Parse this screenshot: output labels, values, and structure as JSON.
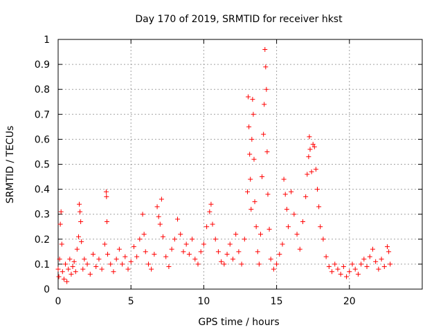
{
  "chart_data": {
    "type": "scatter",
    "title": "Day 170 of 2019, SRMTID for receiver hkst",
    "xlabel": "GPS time / hours",
    "ylabel": "SRMTID / TECUs",
    "xlim": [
      0,
      25
    ],
    "ylim": [
      0,
      1
    ],
    "x_ticks": [
      0,
      5,
      10,
      15,
      20
    ],
    "x_tick_labels": [
      "0",
      "5",
      "10",
      "15",
      "20"
    ],
    "y_ticks": [
      0,
      0.1,
      0.2,
      0.3,
      0.4,
      0.5,
      0.6,
      0.7,
      0.8,
      0.9,
      1
    ],
    "y_tick_labels": [
      "0",
      "0.1",
      "0.2",
      "0.3",
      "0.4",
      "0.5",
      "0.6",
      "0.7",
      "0.8",
      "0.9",
      "1"
    ],
    "grid": true,
    "marker": "plus",
    "color": "#ff0000",
    "series": [
      {
        "name": "SRMTID",
        "points": [
          [
            0.0,
            0.08
          ],
          [
            0.05,
            0.05
          ],
          [
            0.1,
            0.12
          ],
          [
            0.15,
            0.26
          ],
          [
            0.2,
            0.31
          ],
          [
            0.25,
            0.18
          ],
          [
            0.3,
            0.07
          ],
          [
            0.4,
            0.04
          ],
          [
            0.5,
            0.1
          ],
          [
            0.6,
            0.03
          ],
          [
            0.7,
            0.08
          ],
          [
            0.8,
            0.12
          ],
          [
            0.9,
            0.06
          ],
          [
            1.0,
            0.09
          ],
          [
            1.1,
            0.11
          ],
          [
            1.2,
            0.07
          ],
          [
            1.3,
            0.16
          ],
          [
            1.4,
            0.21
          ],
          [
            1.45,
            0.34
          ],
          [
            1.5,
            0.31
          ],
          [
            1.55,
            0.27
          ],
          [
            1.6,
            0.19
          ],
          [
            1.7,
            0.08
          ],
          [
            1.8,
            0.12
          ],
          [
            2.0,
            0.1
          ],
          [
            2.2,
            0.06
          ],
          [
            2.4,
            0.14
          ],
          [
            2.6,
            0.09
          ],
          [
            2.8,
            0.12
          ],
          [
            3.0,
            0.08
          ],
          [
            3.2,
            0.18
          ],
          [
            3.3,
            0.39
          ],
          [
            3.32,
            0.37
          ],
          [
            3.35,
            0.27
          ],
          [
            3.4,
            0.14
          ],
          [
            3.6,
            0.1
          ],
          [
            3.8,
            0.07
          ],
          [
            4.0,
            0.12
          ],
          [
            4.2,
            0.16
          ],
          [
            4.4,
            0.1
          ],
          [
            4.6,
            0.13
          ],
          [
            4.8,
            0.08
          ],
          [
            5.0,
            0.11
          ],
          [
            5.2,
            0.17
          ],
          [
            5.4,
            0.13
          ],
          [
            5.6,
            0.2
          ],
          [
            5.8,
            0.3
          ],
          [
            5.9,
            0.22
          ],
          [
            6.0,
            0.15
          ],
          [
            6.2,
            0.1
          ],
          [
            6.4,
            0.08
          ],
          [
            6.6,
            0.14
          ],
          [
            6.8,
            0.33
          ],
          [
            6.9,
            0.29
          ],
          [
            7.0,
            0.26
          ],
          [
            7.1,
            0.36
          ],
          [
            7.2,
            0.21
          ],
          [
            7.4,
            0.13
          ],
          [
            7.6,
            0.09
          ],
          [
            7.8,
            0.16
          ],
          [
            8.0,
            0.2
          ],
          [
            8.2,
            0.28
          ],
          [
            8.4,
            0.22
          ],
          [
            8.6,
            0.15
          ],
          [
            8.8,
            0.18
          ],
          [
            9.0,
            0.14
          ],
          [
            9.2,
            0.2
          ],
          [
            9.4,
            0.12
          ],
          [
            9.6,
            0.1
          ],
          [
            9.8,
            0.15
          ],
          [
            10.0,
            0.18
          ],
          [
            10.2,
            0.25
          ],
          [
            10.4,
            0.31
          ],
          [
            10.5,
            0.34
          ],
          [
            10.6,
            0.26
          ],
          [
            10.8,
            0.2
          ],
          [
            11.0,
            0.15
          ],
          [
            11.2,
            0.11
          ],
          [
            11.4,
            0.1
          ],
          [
            11.6,
            0.14
          ],
          [
            11.8,
            0.18
          ],
          [
            12.0,
            0.12
          ],
          [
            12.2,
            0.22
          ],
          [
            12.4,
            0.15
          ],
          [
            12.6,
            0.1
          ],
          [
            12.8,
            0.2
          ],
          [
            13.0,
            0.39
          ],
          [
            13.05,
            0.77
          ],
          [
            13.1,
            0.65
          ],
          [
            13.15,
            0.54
          ],
          [
            13.2,
            0.44
          ],
          [
            13.25,
            0.32
          ],
          [
            13.3,
            0.6
          ],
          [
            13.35,
            0.76
          ],
          [
            13.4,
            0.7
          ],
          [
            13.45,
            0.52
          ],
          [
            13.5,
            0.35
          ],
          [
            13.6,
            0.25
          ],
          [
            13.7,
            0.15
          ],
          [
            13.8,
            0.1
          ],
          [
            13.9,
            0.22
          ],
          [
            14.0,
            0.45
          ],
          [
            14.1,
            0.62
          ],
          [
            14.15,
            0.74
          ],
          [
            14.2,
            0.96
          ],
          [
            14.25,
            0.89
          ],
          [
            14.3,
            0.8
          ],
          [
            14.35,
            0.55
          ],
          [
            14.4,
            0.38
          ],
          [
            14.5,
            0.24
          ],
          [
            14.6,
            0.12
          ],
          [
            14.8,
            0.08
          ],
          [
            15.0,
            0.1
          ],
          [
            15.2,
            0.14
          ],
          [
            15.4,
            0.18
          ],
          [
            15.5,
            0.44
          ],
          [
            15.6,
            0.38
          ],
          [
            15.7,
            0.32
          ],
          [
            15.8,
            0.25
          ],
          [
            16.0,
            0.39
          ],
          [
            16.2,
            0.3
          ],
          [
            16.4,
            0.22
          ],
          [
            16.6,
            0.16
          ],
          [
            16.8,
            0.27
          ],
          [
            17.0,
            0.37
          ],
          [
            17.1,
            0.46
          ],
          [
            17.2,
            0.53
          ],
          [
            17.25,
            0.61
          ],
          [
            17.3,
            0.56
          ],
          [
            17.4,
            0.47
          ],
          [
            17.5,
            0.58
          ],
          [
            17.6,
            0.57
          ],
          [
            17.7,
            0.48
          ],
          [
            17.8,
            0.4
          ],
          [
            17.9,
            0.33
          ],
          [
            18.0,
            0.25
          ],
          [
            18.2,
            0.2
          ],
          [
            18.4,
            0.13
          ],
          [
            18.6,
            0.09
          ],
          [
            18.8,
            0.07
          ],
          [
            19.0,
            0.1
          ],
          [
            19.2,
            0.08
          ],
          [
            19.4,
            0.06
          ],
          [
            19.6,
            0.09
          ],
          [
            19.8,
            0.05
          ],
          [
            20.0,
            0.07
          ],
          [
            20.2,
            0.1
          ],
          [
            20.4,
            0.08
          ],
          [
            20.6,
            0.06
          ],
          [
            20.8,
            0.1
          ],
          [
            21.0,
            0.12
          ],
          [
            21.2,
            0.09
          ],
          [
            21.4,
            0.13
          ],
          [
            21.6,
            0.16
          ],
          [
            21.8,
            0.11
          ],
          [
            22.0,
            0.08
          ],
          [
            22.2,
            0.12
          ],
          [
            22.4,
            0.09
          ],
          [
            22.6,
            0.17
          ],
          [
            22.7,
            0.15
          ],
          [
            22.8,
            0.1
          ]
        ]
      }
    ]
  }
}
